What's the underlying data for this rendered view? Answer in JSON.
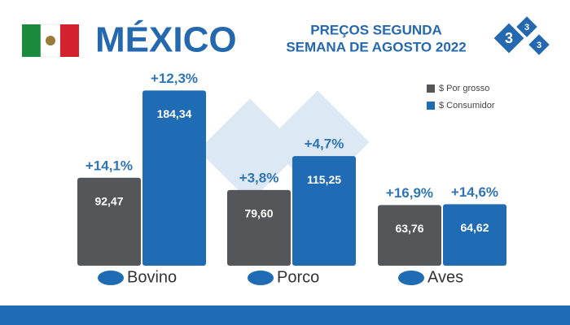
{
  "chart_data": {
    "type": "bar",
    "title": "MÉXICO",
    "subtitle": [
      "PREÇOS SEGUNDA",
      "SEMANA DE AGOSTO 2022"
    ],
    "logo": [
      "3",
      "3",
      "3"
    ],
    "categories": [
      "Bovino",
      "Porco",
      "Aves"
    ],
    "series": [
      {
        "name": "$ Por grosso",
        "color": "#54565a",
        "values": [
          92.47,
          79.6,
          63.76
        ],
        "value_labels": [
          "92,47",
          "79,60",
          "63,76"
        ],
        "change_labels": [
          "+14,1%",
          "+3,8%",
          "+16,9%"
        ]
      },
      {
        "name": "$ Consumidor",
        "color": "#1f6cb5",
        "values": [
          184.34,
          115.25,
          64.62
        ],
        "value_labels": [
          "184,34",
          "115,25",
          "64,62"
        ],
        "change_labels": [
          "+12,3%",
          "+4,7%",
          "+14,6%"
        ]
      }
    ],
    "ylim": [
      0,
      200
    ],
    "legend": "top-right"
  }
}
